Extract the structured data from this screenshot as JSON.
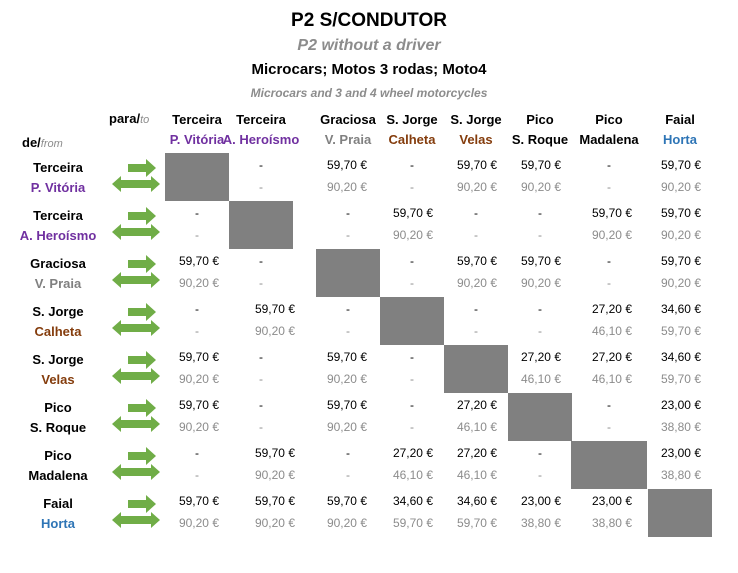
{
  "title": "P2 S/CONDUTOR",
  "subtitle_en": "P2 without a driver",
  "vehicles": "Microcars; Motos 3 rodas; Moto4",
  "vehicles_en": "Microcars and 3 and 4 wheel motorcycles",
  "para_label": "para/",
  "to_label": "to",
  "de_label": "de/",
  "from_label": "from",
  "colors": {
    "terceira": "#7030a0",
    "graciosa": "#808080",
    "sao_jorge": "#843c0c",
    "pico": "#000000",
    "faial": "#2e75b6",
    "arrow": "#70ad47",
    "diagonal": "#808080",
    "secondary_price": "#8c8c8c"
  },
  "columns": [
    {
      "island": "Terceira",
      "port": "P. Vitória",
      "port_color": "#7030a0"
    },
    {
      "island": "Terceira",
      "port": "A. Heroísmo",
      "port_color": "#7030a0"
    },
    {
      "island": "Graciosa",
      "port": "V. Praia",
      "port_color": "#808080"
    },
    {
      "island": "S. Jorge",
      "port": "Calheta",
      "port_color": "#843c0c"
    },
    {
      "island": "S. Jorge",
      "port": "Velas",
      "port_color": "#843c0c"
    },
    {
      "island": "Pico",
      "port": "S. Roque",
      "port_color": "#000000"
    },
    {
      "island": "Pico",
      "port": "Madalena",
      "port_color": "#000000"
    },
    {
      "island": "Faial",
      "port": "Horta",
      "port_color": "#2e75b6"
    }
  ],
  "rows": [
    {
      "island": "Terceira",
      "port": "P. Vitória",
      "port_color": "#7030a0",
      "top": [
        "",
        "-",
        "59,70 €",
        "-",
        "59,70 €",
        "59,70 €",
        "-",
        "59,70 €"
      ],
      "bottom": [
        "",
        "-",
        "90,20 €",
        "-",
        "90,20 €",
        "90,20 €",
        "-",
        "90,20 €"
      ]
    },
    {
      "island": "Terceira",
      "port": "A. Heroísmo",
      "port_color": "#7030a0",
      "top": [
        "-",
        "",
        "-",
        "59,70 €",
        "-",
        "-",
        "59,70 €",
        "59,70 €"
      ],
      "bottom": [
        "-",
        "",
        "-",
        "90,20 €",
        "-",
        "-",
        "90,20 €",
        "90,20 €"
      ]
    },
    {
      "island": "Graciosa",
      "port": "V. Praia",
      "port_color": "#808080",
      "top": [
        "59,70 €",
        "-",
        "",
        "-",
        "59,70 €",
        "59,70 €",
        "-",
        "59,70 €"
      ],
      "bottom": [
        "90,20 €",
        "-",
        "",
        "-",
        "90,20 €",
        "90,20 €",
        "-",
        "90,20 €"
      ]
    },
    {
      "island": "S. Jorge",
      "port": "Calheta",
      "port_color": "#843c0c",
      "top": [
        "-",
        "59,70 €",
        "-",
        "",
        "-",
        "-",
        "27,20 €",
        "34,60 €"
      ],
      "bottom": [
        "-",
        "90,20 €",
        "-",
        "",
        "-",
        "-",
        "46,10 €",
        "59,70 €"
      ]
    },
    {
      "island": "S. Jorge",
      "port": "Velas",
      "port_color": "#843c0c",
      "top": [
        "59,70 €",
        "-",
        "59,70 €",
        "-",
        "",
        "27,20 €",
        "27,20 €",
        "34,60 €"
      ],
      "bottom": [
        "90,20 €",
        "-",
        "90,20 €",
        "-",
        "",
        "46,10 €",
        "46,10 €",
        "59,70 €"
      ]
    },
    {
      "island": "Pico",
      "port": "S. Roque",
      "port_color": "#000000",
      "top": [
        "59,70 €",
        "-",
        "59,70 €",
        "-",
        "27,20 €",
        "",
        "-",
        "23,00 €"
      ],
      "bottom": [
        "90,20 €",
        "-",
        "90,20 €",
        "-",
        "46,10 €",
        "",
        "-",
        "38,80 €"
      ]
    },
    {
      "island": "Pico",
      "port": "Madalena",
      "port_color": "#000000",
      "top": [
        "-",
        "59,70 €",
        "-",
        "27,20 €",
        "27,20 €",
        "-",
        "",
        "23,00 €"
      ],
      "bottom": [
        "-",
        "90,20 €",
        "-",
        "46,10 €",
        "46,10 €",
        "-",
        "",
        "38,80 €"
      ]
    },
    {
      "island": "Faial",
      "port": "Horta",
      "port_color": "#2e75b6",
      "top": [
        "59,70 €",
        "59,70 €",
        "59,70 €",
        "34,60 €",
        "34,60 €",
        "23,00 €",
        "23,00 €",
        ""
      ],
      "bottom": [
        "90,20 €",
        "90,20 €",
        "90,20 €",
        "59,70 €",
        "59,70 €",
        "38,80 €",
        "38,80 €",
        ""
      ]
    }
  ]
}
